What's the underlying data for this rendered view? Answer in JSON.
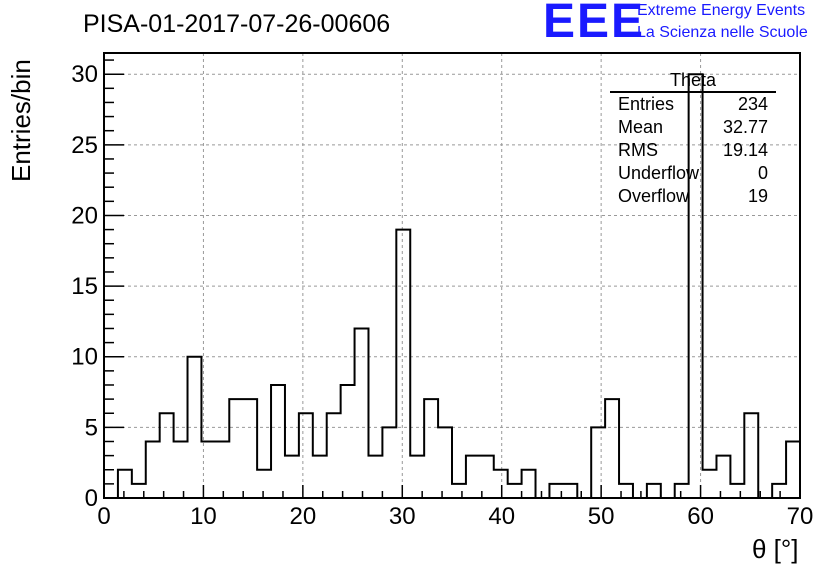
{
  "header": {
    "title": "PISA-01-2017-07-26-00606",
    "logo_text": "EEE",
    "logo_line1": "Extreme Energy Events",
    "logo_line2": "La Scienza nelle Scuole"
  },
  "stats_box": {
    "title": "Theta",
    "rows": [
      {
        "label": "Entries",
        "value": "234"
      },
      {
        "label": "Mean",
        "value": "32.77"
      },
      {
        "label": "RMS",
        "value": "19.14"
      },
      {
        "label": "Underflow",
        "value": "0"
      },
      {
        "label": "Overflow",
        "value": "19"
      }
    ]
  },
  "chart_data": {
    "type": "bar",
    "histogram": true,
    "xlabel": "θ [°]",
    "ylabel": "Entries/bin",
    "xlim": [
      0,
      70
    ],
    "ylim": [
      0,
      31.5
    ],
    "bin_width": 1.4,
    "bin_start": 0,
    "values": [
      0,
      2,
      1,
      4,
      6,
      4,
      10,
      4,
      4,
      7,
      7,
      2,
      8,
      3,
      6,
      3,
      6,
      8,
      12,
      3,
      5,
      19,
      3,
      7,
      5,
      1,
      3,
      3,
      2,
      1,
      2,
      0,
      1,
      1,
      0,
      5,
      7,
      1,
      0,
      1,
      0,
      1,
      30,
      2,
      3,
      1,
      6,
      0,
      1,
      4
    ],
    "xticks": [
      0,
      10,
      20,
      30,
      40,
      50,
      60,
      70
    ],
    "yticks": [
      0,
      5,
      10,
      15,
      20,
      25,
      30
    ],
    "grid": true,
    "colors": {
      "line": "#000000",
      "grid": "#999999",
      "logo": "#1a1aff"
    }
  }
}
